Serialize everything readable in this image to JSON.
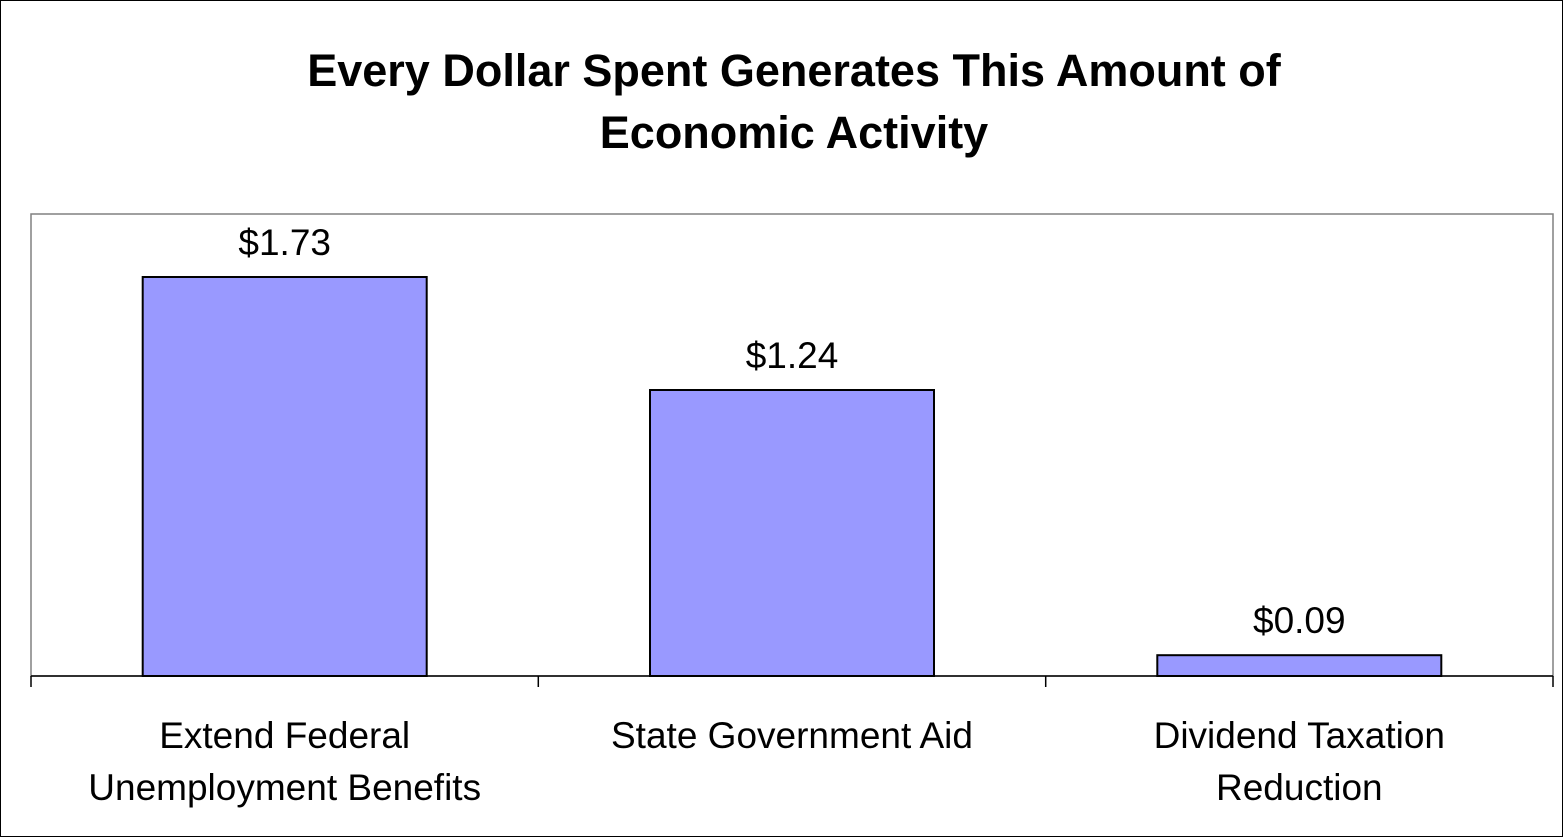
{
  "chart_data": {
    "type": "bar",
    "title_lines": [
      "Every Dollar Spent Generates This Amount of",
      "Economic Activity"
    ],
    "categories": [
      [
        "Extend Federal",
        "Unemployment Benefits"
      ],
      [
        "State Government Aid"
      ],
      [
        "Dividend Taxation",
        "Reduction"
      ]
    ],
    "values": [
      1.73,
      1.24,
      0.09
    ],
    "data_labels": [
      "$1.73",
      "$1.24",
      "$0.09"
    ],
    "ylim": [
      0,
      1.97
    ],
    "grid": false,
    "legend": "none",
    "colors": {
      "bar_fill": "#9999ff",
      "bar_stroke": "#000000",
      "frame": "#808080",
      "axis": "#000000",
      "text": "#000000",
      "background": "#ffffff"
    }
  }
}
